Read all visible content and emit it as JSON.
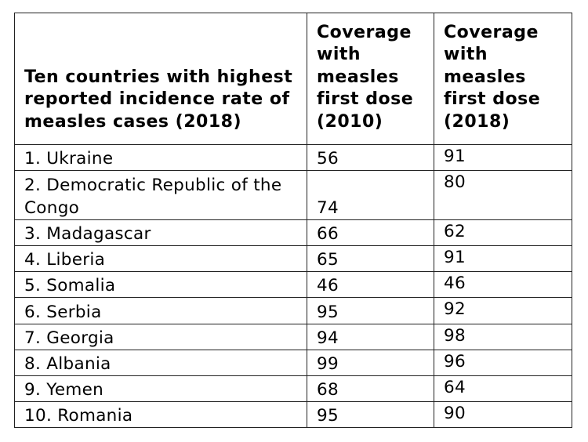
{
  "headers": [
    "Ten countries with highest reported incidence rate of measles cases (2018)",
    "Coverage with measles first dose (2010)",
    "Coverage with measles first dose (2018)"
  ],
  "rows": [
    {
      "country": "1. Ukraine",
      "coverage_2010": "56",
      "coverage_2018": "91"
    },
    {
      "country": "2. Democratic Republic of the Congo",
      "coverage_2010": "74",
      "coverage_2018": "80"
    },
    {
      "country": "3. Madagascar",
      "coverage_2010": "66",
      "coverage_2018": "62"
    },
    {
      "country": "4. Liberia",
      "coverage_2010": "65",
      "coverage_2018": "91"
    },
    {
      "country": "5. Somalia",
      "coverage_2010": "46",
      "coverage_2018": "46"
    },
    {
      "country": "6. Serbia",
      "coverage_2010": "95",
      "coverage_2018": "92"
    },
    {
      "country": "7. Georgia",
      "coverage_2010": "94",
      "coverage_2018": "98"
    },
    {
      "country": "8. Albania",
      "coverage_2010": "99",
      "coverage_2018": "96"
    },
    {
      "country": "9. Yemen",
      "coverage_2010": "68",
      "coverage_2018": "64"
    },
    {
      "country": "10. Romania",
      "coverage_2010": "95",
      "coverage_2018": "90"
    }
  ]
}
